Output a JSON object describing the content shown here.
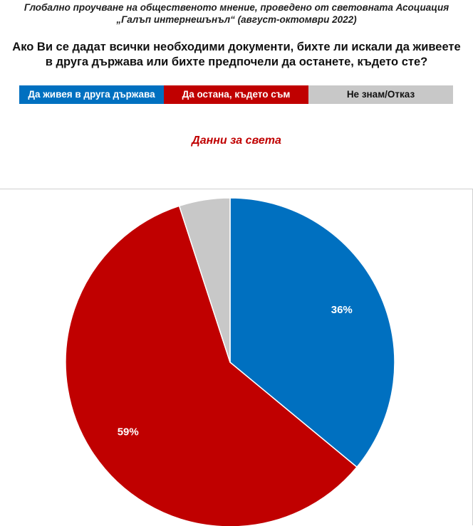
{
  "header": {
    "line1": "Глобално проучване на общественото мнение, проведено от световната Асоциация",
    "line2": "„Галъп интернешънъл“ (август-октомври 2022)"
  },
  "question": {
    "line1": "Ако Ви се дадат всички необходими документи, бихте ли искали да живеете",
    "line2": "в друга държава или бихте предпочели да останете, където сте?"
  },
  "subtitle": "Данни за света",
  "chart_data": {
    "type": "pie",
    "title": "Данни за света",
    "legend_position": "top",
    "categories": [
      "Да живея в друга държава",
      "Да остана, където съм",
      "Не знам/Отказ"
    ],
    "values": [
      36,
      59,
      5
    ],
    "data_labels": [
      "36%",
      "59%",
      ""
    ],
    "colors": [
      "#0070c0",
      "#c00000",
      "#c8c8c8"
    ],
    "legend_text_colors": [
      "#ffffff",
      "#ffffff",
      "#111111"
    ]
  }
}
